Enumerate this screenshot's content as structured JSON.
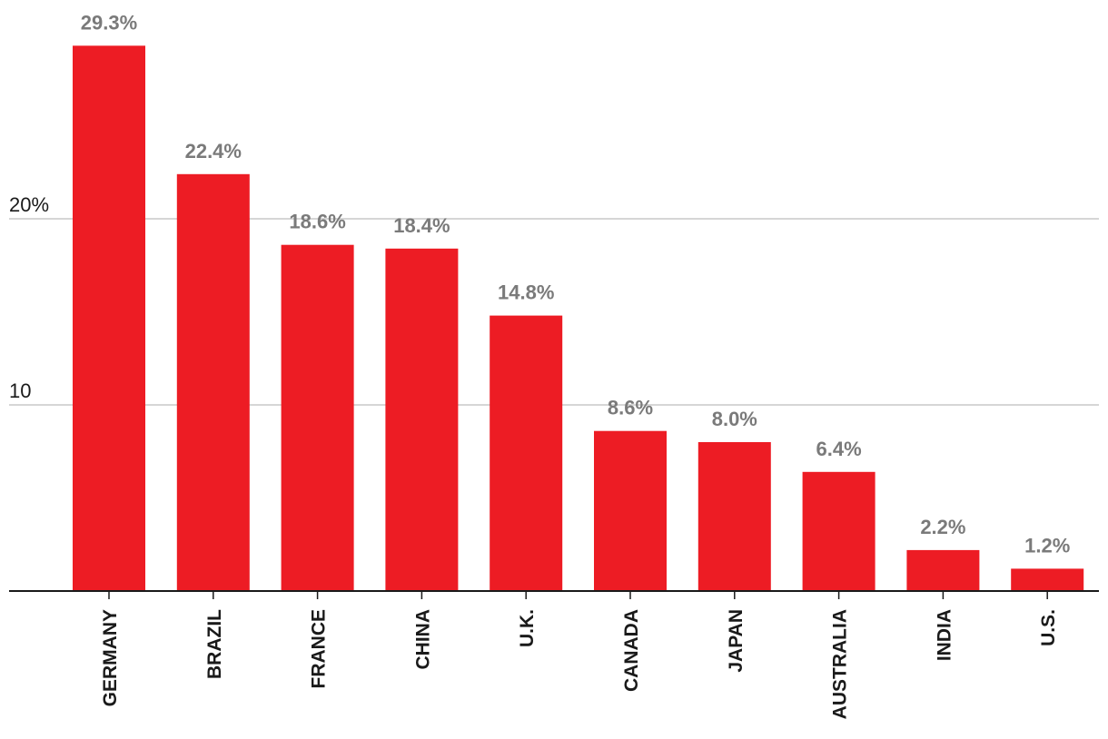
{
  "chart_data": {
    "type": "bar",
    "title": "",
    "xlabel": "",
    "ylabel": "",
    "categories": [
      "GERMANY",
      "BRAZIL",
      "FRANCE",
      "CHINA",
      "U.K.",
      "CANADA",
      "JAPAN",
      "AUSTRALIA",
      "INDIA",
      "U.S."
    ],
    "values": [
      29.3,
      22.4,
      18.6,
      18.4,
      14.8,
      8.6,
      8.0,
      6.4,
      2.2,
      1.2
    ],
    "data_labels": [
      "29.3%",
      "22.4%",
      "18.6%",
      "18.4%",
      "14.8%",
      "8.6%",
      "8.0%",
      "6.4%",
      "2.2%",
      "1.2%"
    ],
    "y_ticks": [
      {
        "value": 10,
        "label": "10"
      },
      {
        "value": 20,
        "label": "20%"
      }
    ],
    "ylim": [
      0,
      30
    ],
    "grid": true,
    "colors": {
      "bar": "#ed1c24",
      "grid": "#c8c8c8",
      "axis": "#1a1a1a",
      "data_label": "#7a7a7a"
    }
  }
}
